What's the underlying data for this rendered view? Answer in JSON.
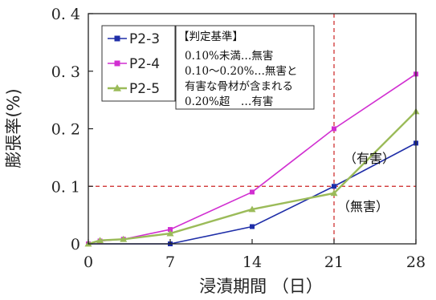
{
  "chart_data": {
    "type": "line",
    "xlabel": "浸漬期間 （日）",
    "ylabel": "膨張率(%)",
    "xlim": [
      0,
      28
    ],
    "ylim": [
      0,
      0.4
    ],
    "xticks": [
      "0",
      "7",
      "14",
      "21",
      "28"
    ],
    "xtick_values": [
      0,
      7,
      14,
      21,
      28
    ],
    "yticks": [
      "0",
      "0. 1",
      "0. 2",
      "0. 3",
      "0. 4"
    ],
    "ytick_values": [
      0,
      0.1,
      0.2,
      0.3,
      0.4
    ],
    "grid": false,
    "legend_position": "top-left",
    "series": [
      {
        "name": "P2-3",
        "color": "#1f2ea8",
        "marker": "square",
        "x": [
          0,
          7,
          14,
          21,
          28
        ],
        "y": [
          0.0,
          0.0,
          0.03,
          0.1,
          0.175
        ]
      },
      {
        "name": "P2-4",
        "color": "#d12fd1",
        "marker": "square",
        "x": [
          0,
          1,
          3,
          7,
          14,
          21,
          28
        ],
        "y": [
          0.0,
          0.005,
          0.008,
          0.025,
          0.09,
          0.2,
          0.295
        ]
      },
      {
        "name": "P2-5",
        "color": "#9bbb59",
        "marker": "triangle",
        "x": [
          0,
          1,
          3,
          7,
          14,
          21,
          28
        ],
        "y": [
          0.0,
          0.006,
          0.008,
          0.018,
          0.06,
          0.088,
          0.23
        ]
      }
    ],
    "reference_lines": [
      {
        "orientation": "horizontal",
        "value": 0.1,
        "color": "#cc2222",
        "style": "dashed"
      },
      {
        "orientation": "vertical",
        "value": 21,
        "color": "#cc2222",
        "style": "dashed"
      }
    ],
    "criteria_box": {
      "title": "【判定基準】",
      "lines": [
        "0.10%未満…無害",
        "0.10～0.20%…無害と",
        "有害な骨材が含まれる",
        "0.20%超　…有害"
      ]
    },
    "annotations": [
      "（有害）",
      "（無害）"
    ]
  }
}
